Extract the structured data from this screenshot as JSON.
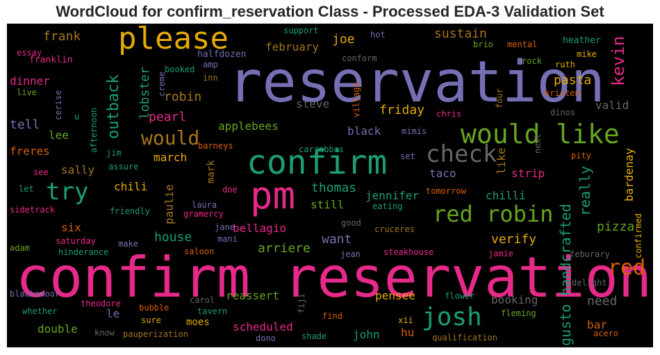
{
  "title": "WordCloud for confirm_reservation Class - Processed EDA-3 Validation Set",
  "palette": {
    "background": "#000000",
    "pink": "#e7298a",
    "green": "#1b9e77",
    "purple": "#7570b3",
    "orange": "#d95f02",
    "lime": "#66a61e",
    "gold": "#e6ab02",
    "brown": "#a6761d",
    "gray": "#666666"
  },
  "words": [
    {
      "text": "reservation",
      "color": "#7570b3"
    },
    {
      "text": "confirm reservation",
      "color": "#e7298a"
    },
    {
      "text": "confirm",
      "color": "#1b9e77"
    },
    {
      "text": "pm",
      "color": "#e7298a"
    },
    {
      "text": "please",
      "color": "#e6ab02"
    },
    {
      "text": "would like",
      "color": "#66a61e"
    },
    {
      "text": "check",
      "color": "#666666"
    },
    {
      "text": "red robin",
      "color": "#66a61e"
    },
    {
      "text": "try",
      "color": "#1b9e77"
    },
    {
      "text": "josh",
      "color": "#1b9e77"
    },
    {
      "text": "kevin",
      "color": "#e7298a"
    },
    {
      "text": "red",
      "color": "#d95f02"
    },
    {
      "text": "gusto handcrafted",
      "color": "#1b9e77"
    },
    {
      "text": "would",
      "color": "#a6761d"
    },
    {
      "text": "outback",
      "color": "#1b9e77"
    },
    {
      "text": "really",
      "color": "#1b9e77"
    },
    {
      "text": "frank",
      "color": "#a6761d"
    },
    {
      "text": "support",
      "color": "#1b9e77"
    },
    {
      "text": "hot",
      "color": "#7570b3"
    },
    {
      "text": "heather",
      "color": "#1b9e77"
    },
    {
      "text": "essay",
      "color": "#e7298a"
    },
    {
      "text": "halfdozen",
      "color": "#7570b3"
    },
    {
      "text": "joe",
      "color": "#e6ab02"
    },
    {
      "text": "sustain",
      "color": "#a6761d"
    },
    {
      "text": "brio",
      "color": "#66a61e"
    },
    {
      "text": "mental",
      "color": "#d95f02"
    },
    {
      "text": "mike",
      "color": "#e6ab02"
    },
    {
      "text": "franklin",
      "color": "#e7298a"
    },
    {
      "text": "february",
      "color": "#a6761d"
    },
    {
      "text": "conform",
      "color": "#666666"
    },
    {
      "text": "amp",
      "color": "#7570b3"
    },
    {
      "text": "rock",
      "color": "#66a61e"
    },
    {
      "text": "ruth",
      "color": "#e6ab02"
    },
    {
      "text": "booked",
      "color": "#1b9e77"
    },
    {
      "text": "inn",
      "color": "#a6761d"
    },
    {
      "text": "dinner",
      "color": "#e7298a"
    },
    {
      "text": "pasta",
      "color": "#e6ab02"
    },
    {
      "text": "kristen",
      "color": "#d95f02"
    },
    {
      "text": "live",
      "color": "#66a61e"
    },
    {
      "text": "cerise",
      "color": "#7570b3"
    },
    {
      "text": "creme",
      "color": "#7570b3"
    },
    {
      "text": "lobster",
      "color": "#1b9e77"
    },
    {
      "text": "robin",
      "color": "#a6761d"
    },
    {
      "text": "village",
      "color": "#d95f02"
    },
    {
      "text": "valid",
      "color": "#666666"
    },
    {
      "text": "steve",
      "color": "#666666"
    },
    {
      "text": "friday",
      "color": "#e6ab02"
    },
    {
      "text": "chris",
      "color": "#e7298a"
    },
    {
      "text": "four",
      "color": "#a6761d"
    },
    {
      "text": "pearl",
      "color": "#e7298a"
    },
    {
      "text": "tell",
      "color": "#7570b3"
    },
    {
      "text": "u",
      "color": "#1b9e77"
    },
    {
      "text": "afternoon",
      "color": "#1b9e77"
    },
    {
      "text": "dinos",
      "color": "#666666"
    },
    {
      "text": "lee",
      "color": "#66a61e"
    },
    {
      "text": "applebees",
      "color": "#66a61e"
    },
    {
      "text": "black",
      "color": "#7570b3"
    },
    {
      "text": "mimis",
      "color": "#7570b3"
    },
    {
      "text": "freres",
      "color": "#d95f02"
    },
    {
      "text": "jim",
      "color": "#1b9e77"
    },
    {
      "text": "barneys",
      "color": "#d95f02"
    },
    {
      "text": "carrabbas",
      "color": "#1b9e77"
    },
    {
      "text": "next",
      "color": "#666666"
    },
    {
      "text": "pity",
      "color": "#d95f02"
    },
    {
      "text": "bardenay",
      "color": "#e6ab02"
    },
    {
      "text": "assure",
      "color": "#1b9e77"
    },
    {
      "text": "march",
      "color": "#e6ab02"
    },
    {
      "text": "mark",
      "color": "#a6761d"
    },
    {
      "text": "like",
      "color": "#a6761d"
    },
    {
      "text": "see",
      "color": "#e7298a"
    },
    {
      "text": "sally",
      "color": "#a6761d"
    },
    {
      "text": "taco",
      "color": "#7570b3"
    },
    {
      "text": "strip",
      "color": "#e7298a"
    },
    {
      "text": "set",
      "color": "#7570b3"
    },
    {
      "text": "chili",
      "color": "#e6ab02"
    },
    {
      "text": "paulie",
      "color": "#a6761d"
    },
    {
      "text": "doe",
      "color": "#e7298a"
    },
    {
      "text": "thomas",
      "color": "#1b9e77"
    },
    {
      "text": "tomorrow",
      "color": "#d95f02"
    },
    {
      "text": "chilli",
      "color": "#1b9e77"
    },
    {
      "text": "let",
      "color": "#1b9e77"
    },
    {
      "text": "jennifer",
      "color": "#1b9e77"
    },
    {
      "text": "sidetrack",
      "color": "#e7298a"
    },
    {
      "text": "friendly",
      "color": "#1b9e77"
    },
    {
      "text": "laura",
      "color": "#7570b3"
    },
    {
      "text": "still",
      "color": "#66a61e"
    },
    {
      "text": "eating",
      "color": "#1b9e77"
    },
    {
      "text": "gramercy",
      "color": "#e7298a"
    },
    {
      "text": "bellagio",
      "color": "#e7298a"
    },
    {
      "text": "good",
      "color": "#666666"
    },
    {
      "text": "pizza",
      "color": "#66a61e"
    },
    {
      "text": "six",
      "color": "#d95f02"
    },
    {
      "text": "jane",
      "color": "#7570b3"
    },
    {
      "text": "cruceres",
      "color": "#a6761d"
    },
    {
      "text": "house",
      "color": "#1b9e77"
    },
    {
      "text": "mani",
      "color": "#7570b3"
    },
    {
      "text": "verify",
      "color": "#e6ab02"
    },
    {
      "text": "adam",
      "color": "#66a61e"
    },
    {
      "text": "saturday",
      "color": "#e7298a"
    },
    {
      "text": "make",
      "color": "#7570b3"
    },
    {
      "text": "want",
      "color": "#7570b3"
    },
    {
      "text": "hinderance",
      "color": "#1b9e77"
    },
    {
      "text": "saloon",
      "color": "#d95f02"
    },
    {
      "text": "arriere",
      "color": "#66a61e"
    },
    {
      "text": "steakhouse",
      "color": "#e7298a"
    },
    {
      "text": "jean",
      "color": "#7570b3"
    },
    {
      "text": "jamie",
      "color": "#e7298a"
    },
    {
      "text": "feburary",
      "color": "#666666"
    },
    {
      "text": "confirmed",
      "color": "#e6ab02"
    },
    {
      "text": "blackamoor",
      "color": "#7570b3"
    },
    {
      "text": "delight",
      "color": "#666666"
    },
    {
      "text": "reassert",
      "color": "#66a61e"
    },
    {
      "text": "pensee",
      "color": "#e6ab02"
    },
    {
      "text": "theodore",
      "color": "#e7298a"
    },
    {
      "text": "carol",
      "color": "#666666"
    },
    {
      "text": "bubble",
      "color": "#d95f02"
    },
    {
      "text": "flower",
      "color": "#1b9e77"
    },
    {
      "text": "booking",
      "color": "#666666"
    },
    {
      "text": "need",
      "color": "#666666"
    },
    {
      "text": "whether",
      "color": "#1b9e77"
    },
    {
      "text": "tavern",
      "color": "#1b9e77"
    },
    {
      "text": "fiji",
      "color": "#666666"
    },
    {
      "text": "fleming",
      "color": "#66a61e"
    },
    {
      "text": "le",
      "color": "#7570b3"
    },
    {
      "text": "sure",
      "color": "#e6ab02"
    },
    {
      "text": "moes",
      "color": "#e6ab02"
    },
    {
      "text": "find",
      "color": "#d95f02"
    },
    {
      "text": "xii",
      "color": "#e6ab02"
    },
    {
      "text": "bar",
      "color": "#d95f02"
    },
    {
      "text": "double",
      "color": "#66a61e"
    },
    {
      "text": "scheduled",
      "color": "#e7298a"
    },
    {
      "text": "hu",
      "color": "#d95f02"
    },
    {
      "text": "acero",
      "color": "#d95f02"
    },
    {
      "text": "know",
      "color": "#666666"
    },
    {
      "text": "pauperization",
      "color": "#a6761d"
    },
    {
      "text": "dono",
      "color": "#7570b3"
    },
    {
      "text": "shade",
      "color": "#1b9e77"
    },
    {
      "text": "john",
      "color": "#1b9e77"
    },
    {
      "text": "qualification",
      "color": "#a6761d"
    }
  ]
}
